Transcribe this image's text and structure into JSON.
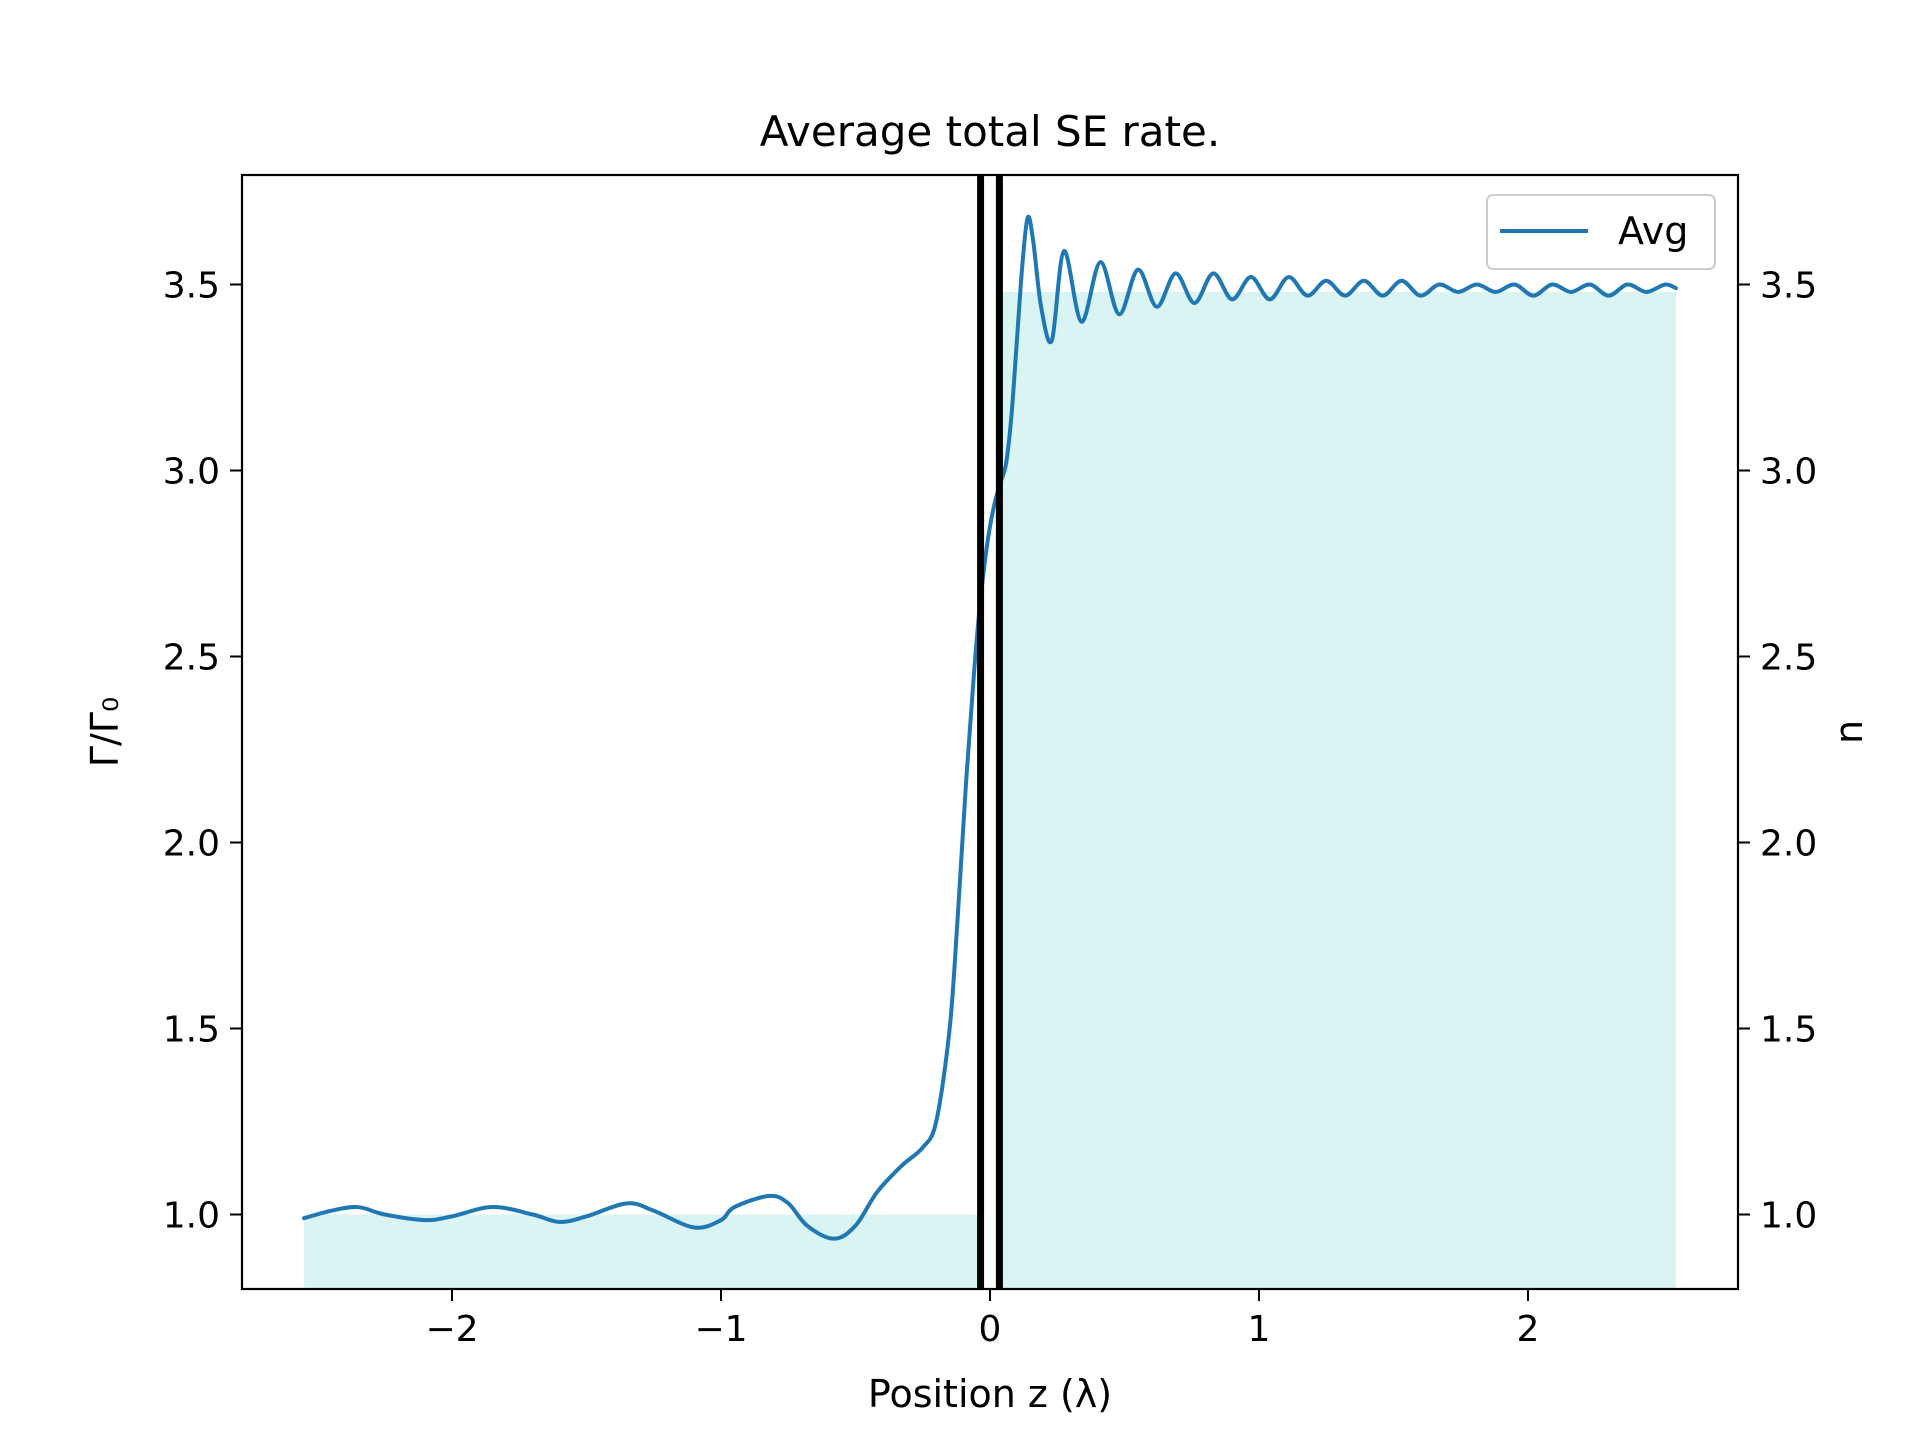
{
  "chart_data": {
    "type": "line",
    "title": "Average total SE rate.",
    "xlabel": "Position z (λ)",
    "ylabel_left": "Γ/Γ₀",
    "ylabel_right": "n",
    "xlim": [
      -2.8,
      2.8
    ],
    "ylim": [
      0.8,
      3.8
    ],
    "x_ticks": [
      -2,
      -1,
      0,
      1,
      2
    ],
    "x_tick_labels": [
      "−2",
      "−1",
      "0",
      "1",
      "2"
    ],
    "y_ticks": [
      1.0,
      1.5,
      2.0,
      2.5,
      3.0,
      3.5
    ],
    "y_tick_labels": [
      "1.0",
      "1.5",
      "2.0",
      "2.5",
      "3.0",
      "3.5"
    ],
    "y2_tick_labels": [
      "1.0",
      "1.5",
      "2.0",
      "2.5",
      "3.0",
      "3.5"
    ],
    "legend": {
      "placement": "top-right",
      "entries": [
        "Avg"
      ]
    },
    "grid": false,
    "colors": {
      "series": "#1f77b4",
      "shade": "#daf4f4",
      "interface": "#000000"
    },
    "interface_lines": [
      -0.035,
      0.035
    ],
    "refractive_index": [
      {
        "x_from": -2.55,
        "x_to": -0.04,
        "n": 1.0
      },
      {
        "x_from": 0.04,
        "x_to": 2.55,
        "n": 3.48
      }
    ],
    "series": [
      {
        "name": "Avg",
        "x": [
          -2.55,
          -2.45,
          -2.35,
          -2.25,
          -2.1,
          -2.0,
          -1.85,
          -1.7,
          -1.6,
          -1.5,
          -1.35,
          -1.25,
          -1.1,
          -1.0,
          -0.95,
          -0.82,
          -0.75,
          -0.68,
          -0.58,
          -0.5,
          -0.42,
          -0.33,
          -0.25,
          -0.2,
          -0.15,
          -0.12,
          -0.09,
          -0.06,
          -0.04,
          -0.02,
          0.0,
          0.02,
          0.04,
          0.06,
          0.08,
          0.1,
          0.12,
          0.14,
          0.16,
          0.19,
          0.23,
          0.275,
          0.34,
          0.41,
          0.48,
          0.55,
          0.62,
          0.69,
          0.76,
          0.83,
          0.9,
          0.97,
          1.04,
          1.11,
          1.18,
          1.25,
          1.32,
          1.39,
          1.46,
          1.53,
          1.6,
          1.67,
          1.74,
          1.81,
          1.88,
          1.95,
          2.02,
          2.09,
          2.16,
          2.23,
          2.3,
          2.37,
          2.44,
          2.51,
          2.55
        ],
        "y": [
          0.99,
          1.01,
          1.02,
          1.0,
          0.985,
          0.995,
          1.02,
          1.0,
          0.98,
          0.995,
          1.03,
          1.01,
          0.965,
          0.985,
          1.02,
          1.05,
          1.03,
          0.97,
          0.935,
          0.97,
          1.06,
          1.13,
          1.18,
          1.25,
          1.5,
          1.8,
          2.15,
          2.45,
          2.62,
          2.75,
          2.85,
          2.92,
          2.97,
          3.02,
          3.15,
          3.35,
          3.55,
          3.68,
          3.62,
          3.44,
          3.35,
          3.59,
          3.4,
          3.56,
          3.42,
          3.54,
          3.44,
          3.53,
          3.45,
          3.53,
          3.46,
          3.52,
          3.46,
          3.52,
          3.47,
          3.51,
          3.47,
          3.51,
          3.47,
          3.51,
          3.47,
          3.5,
          3.48,
          3.5,
          3.48,
          3.5,
          3.47,
          3.5,
          3.48,
          3.5,
          3.47,
          3.5,
          3.48,
          3.5,
          3.49
        ]
      }
    ]
  }
}
